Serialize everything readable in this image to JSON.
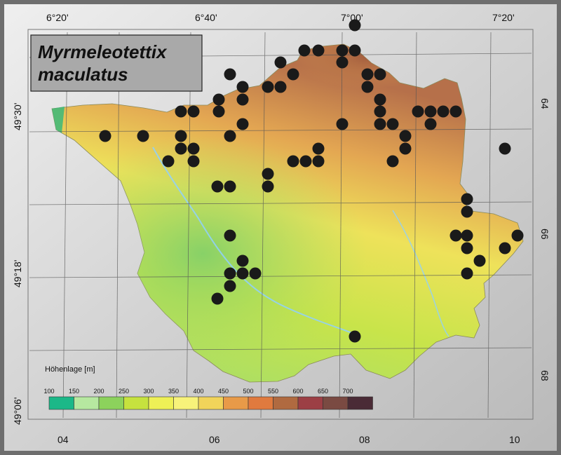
{
  "title": {
    "line1": "Myrmeleotettix",
    "line2": "maculatus"
  },
  "top_labels": [
    "6°20'",
    "6°40'",
    "7°00'",
    "7°20'"
  ],
  "left_labels": [
    "49°30'",
    "49°18'",
    "49°06'"
  ],
  "right_labels": [
    "64",
    "66",
    "68"
  ],
  "bottom_labels": [
    "04",
    "06",
    "08",
    "10"
  ],
  "legend": {
    "title": "Höhenlage [m]",
    "ticks": [
      "100",
      "150",
      "200",
      "250",
      "300",
      "350",
      "400",
      "450",
      "500",
      "550",
      "600",
      "650",
      "700"
    ],
    "colors": [
      "#1bb888",
      "#b6e8a0",
      "#8cd25c",
      "#c6e23e",
      "#eef056",
      "#f7f27a",
      "#f1d45a",
      "#e89a48",
      "#e07a3e",
      "#b06a40",
      "#9c3f45",
      "#7a4a42",
      "#4a2b36"
    ]
  },
  "colors": {
    "frame": "#6e6e6e",
    "map_bg": "#d9d9d9",
    "marker": "#1a1a1a"
  },
  "occurrence_dot_count": 76
}
